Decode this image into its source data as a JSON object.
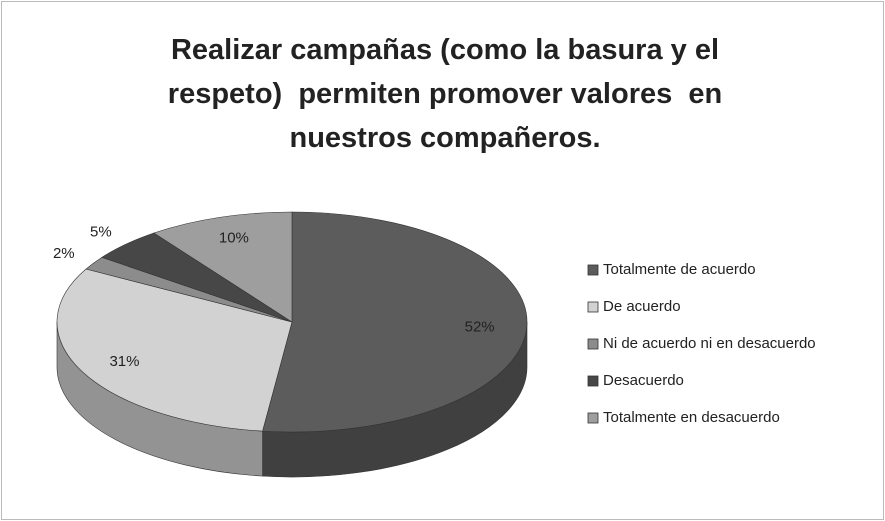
{
  "chart_data": {
    "type": "pie",
    "title": "Realizar campañas (como la basura y el respeto)  permiten promover valores  en nuestros compañeros.",
    "categories": [
      "Totalmente de acuerdo",
      "De acuerdo",
      "Ni de acuerdo ni en desacuerdo",
      "Desacuerdo",
      "Totalmente en desacuerdo"
    ],
    "values": [
      52,
      31,
      2,
      5,
      10
    ],
    "value_labels": [
      "52%",
      "31%",
      "2%",
      "5%",
      "10%"
    ],
    "colors": [
      "#5c5c5c",
      "#d2d2d2",
      "#8c8c8c",
      "#474747",
      "#9e9e9e"
    ],
    "legend": "right"
  }
}
